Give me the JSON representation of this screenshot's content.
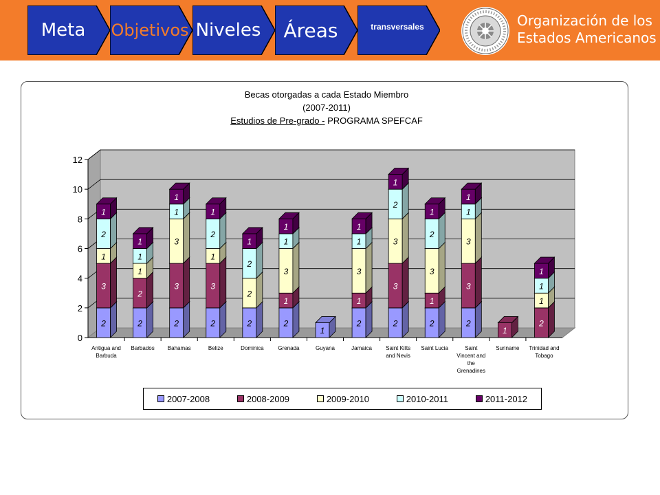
{
  "nav": {
    "steps": [
      {
        "label": "Meta",
        "color": "#ffffff"
      },
      {
        "label": "Objetivos",
        "color": "#f37c2a"
      },
      {
        "label": "Niveles",
        "color": "#ffffff"
      },
      {
        "label": "Áreas",
        "color": "#ffffff"
      },
      {
        "label": "transversales",
        "color": "#ffffff"
      }
    ]
  },
  "org": {
    "line1": "Organización de los",
    "line2": "Estados Americanos",
    "seal_text": "ORGANIZACIÓN DE LOS ESTADOS AMERICANOS"
  },
  "chart": {
    "title_line1": "Becas otorgadas a cada Estado Miembro",
    "title_line2": "(2007-2011)",
    "title_line3_a": "Estudios de Pre-grado ",
    "title_line3_b": "-",
    "title_line3_c": "  PROGRAMA SPEFCAF"
  },
  "chart_data": {
    "type": "bar",
    "stacked": true,
    "title": "Becas otorgadas a cada Estado Miembro (2007-2011) Estudios de Pre-grado - PROGRAMA SPEFCAF",
    "categories": [
      [
        "Antigua and",
        "Barbuda"
      ],
      [
        "Barbados"
      ],
      [
        "Bahamas"
      ],
      [
        "Belize"
      ],
      [
        "Dominica"
      ],
      [
        "Grenada"
      ],
      [
        "Guyana"
      ],
      [
        "Jamaica"
      ],
      [
        "Saint Kitts",
        "and Nevis"
      ],
      [
        "Saint Lucia"
      ],
      [
        "Saint",
        "Vincent and",
        "the",
        "Grenadines"
      ],
      [
        "Suriname"
      ],
      [
        "Trinidad and",
        "Tobago"
      ]
    ],
    "series": [
      {
        "name": "2007-2008",
        "color": "#9999ff",
        "values": [
          2,
          2,
          2,
          2,
          2,
          2,
          1,
          2,
          2,
          2,
          2,
          0,
          0
        ]
      },
      {
        "name": "2008-2009",
        "color": "#993366",
        "values": [
          3,
          2,
          3,
          3,
          0,
          1,
          0,
          1,
          3,
          1,
          3,
          1,
          2
        ]
      },
      {
        "name": "2009-2010",
        "color": "#ffffcc",
        "values": [
          1,
          1,
          3,
          1,
          2,
          3,
          0,
          3,
          3,
          3,
          3,
          0,
          1
        ]
      },
      {
        "name": "2010-2011",
        "color": "#ccffff",
        "values": [
          2,
          1,
          1,
          2,
          2,
          1,
          0,
          1,
          2,
          2,
          1,
          0,
          1
        ]
      },
      {
        "name": "2011-2012",
        "color": "#660066",
        "values": [
          1,
          1,
          1,
          1,
          1,
          1,
          0,
          1,
          1,
          1,
          1,
          0,
          1
        ]
      }
    ],
    "ylim": [
      0,
      12
    ],
    "yticks": [
      0,
      2,
      4,
      6,
      8,
      10,
      12
    ],
    "grid": true,
    "legend": "bottom"
  }
}
